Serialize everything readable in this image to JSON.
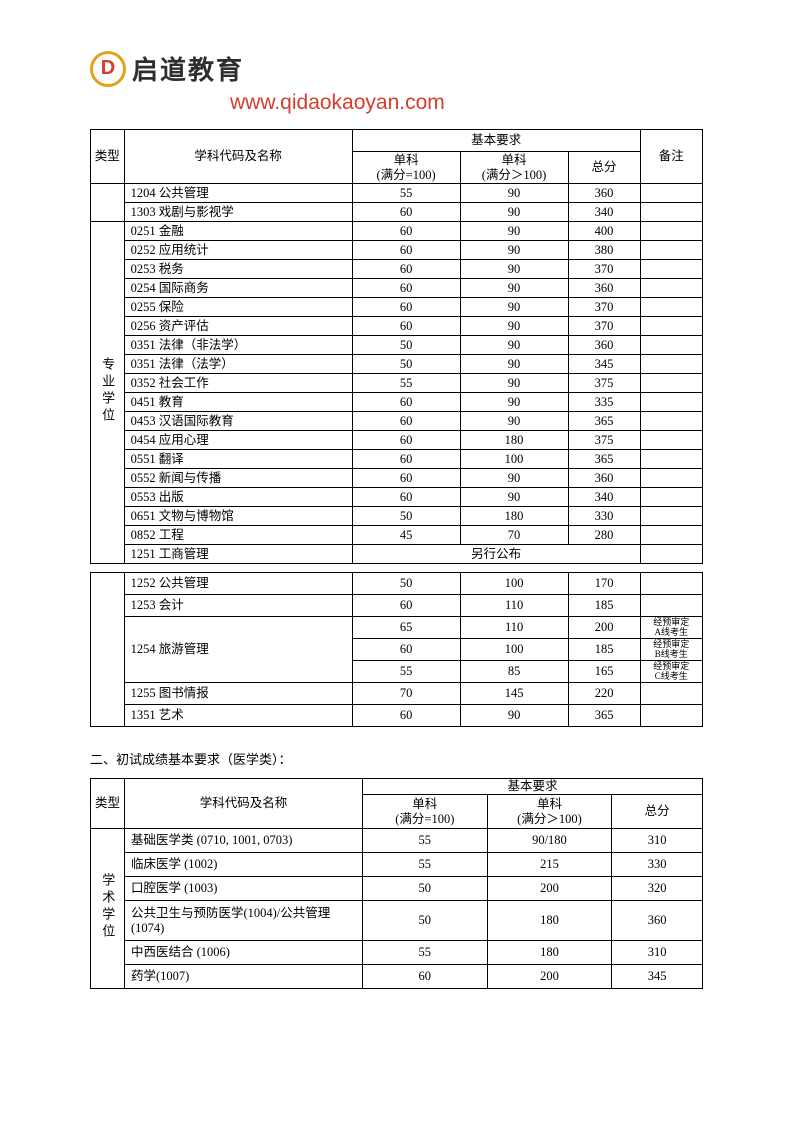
{
  "header": {
    "brand": "启道教育",
    "logo_letter": "D",
    "url": "www.qidaokaoyan.com",
    "brand_color": "#d73c2c",
    "logo_border_color": "#e5a020"
  },
  "table1": {
    "headers": {
      "type": "类型",
      "subject": "学科代码及名称",
      "basic": "基本要求",
      "sub1": "单科\n(满分=100)",
      "sub2": "单科\n(满分＞100)",
      "total": "总分",
      "note": "备注"
    },
    "group_top": {
      "rows": [
        {
          "subject": "1204  公共管理",
          "s1": "55",
          "s2": "90",
          "t": "360",
          "n": ""
        },
        {
          "subject": "1303  戏剧与影视学",
          "s1": "60",
          "s2": "90",
          "t": "340",
          "n": ""
        }
      ]
    },
    "group_pro": {
      "label": "专业学位",
      "rows": [
        {
          "subject": "0251  金融",
          "s1": "60",
          "s2": "90",
          "t": "400",
          "n": ""
        },
        {
          "subject": "0252  应用统计",
          "s1": "60",
          "s2": "90",
          "t": "380",
          "n": ""
        },
        {
          "subject": "0253  税务",
          "s1": "60",
          "s2": "90",
          "t": "370",
          "n": ""
        },
        {
          "subject": "0254  国际商务",
          "s1": "60",
          "s2": "90",
          "t": "360",
          "n": ""
        },
        {
          "subject": "0255  保险",
          "s1": "60",
          "s2": "90",
          "t": "370",
          "n": ""
        },
        {
          "subject": "0256  资产评估",
          "s1": "60",
          "s2": "90",
          "t": "370",
          "n": ""
        },
        {
          "subject": "0351  法律（非法学）",
          "s1": "50",
          "s2": "90",
          "t": "360",
          "n": ""
        },
        {
          "subject": "0351  法律（法学）",
          "s1": "50",
          "s2": "90",
          "t": "345",
          "n": ""
        },
        {
          "subject": "0352  社会工作",
          "s1": "55",
          "s2": "90",
          "t": "375",
          "n": ""
        },
        {
          "subject": "0451  教育",
          "s1": "60",
          "s2": "90",
          "t": "335",
          "n": ""
        },
        {
          "subject": "0453  汉语国际教育",
          "s1": "60",
          "s2": "90",
          "t": "365",
          "n": ""
        },
        {
          "subject": "0454  应用心理",
          "s1": "60",
          "s2": "180",
          "t": "375",
          "n": ""
        },
        {
          "subject": "0551  翻译",
          "s1": "60",
          "s2": "100",
          "t": "365",
          "n": ""
        },
        {
          "subject": "0552  新闻与传播",
          "s1": "60",
          "s2": "90",
          "t": "360",
          "n": ""
        },
        {
          "subject": "0553  出版",
          "s1": "60",
          "s2": "90",
          "t": "340",
          "n": ""
        },
        {
          "subject": "0651  文物与博物馆",
          "s1": "50",
          "s2": "180",
          "t": "330",
          "n": ""
        },
        {
          "subject": "0852  工程",
          "s1": "45",
          "s2": "70",
          "t": "280",
          "n": ""
        }
      ],
      "mba_row": {
        "subject": "1251  工商管理",
        "merged": "另行公布"
      }
    },
    "group_bottom": {
      "rows": [
        {
          "subject": "1252  公共管理",
          "s1": "50",
          "s2": "100",
          "t": "170",
          "n": ""
        },
        {
          "subject": "1253  会计",
          "s1": "60",
          "s2": "110",
          "t": "185",
          "n": ""
        }
      ],
      "tourism": {
        "subject": "1254  旅游管理",
        "lines": [
          {
            "s1": "65",
            "s2": "110",
            "t": "200",
            "n": "经预审定\nA线考生"
          },
          {
            "s1": "60",
            "s2": "100",
            "t": "185",
            "n": "经预审定\nB线考生"
          },
          {
            "s1": "55",
            "s2": "85",
            "t": "165",
            "n": "经预审定\nC线考生"
          }
        ]
      },
      "rows2": [
        {
          "subject": "1255  图书情报",
          "s1": "70",
          "s2": "145",
          "t": "220",
          "n": ""
        },
        {
          "subject": "1351  艺术",
          "s1": "60",
          "s2": "90",
          "t": "365",
          "n": ""
        }
      ]
    }
  },
  "section2_title": "二、初试成绩基本要求（医学类）：",
  "table2": {
    "headers": {
      "type": "类型",
      "subject": "学科代码及名称",
      "basic": "基本要求",
      "sub1": "单科\n(满分=100)",
      "sub2": "单科\n(满分＞100)",
      "total": "总分"
    },
    "group": {
      "label": "学术学位",
      "rows": [
        {
          "subject": "基础医学类 (0710, 1001, 0703)",
          "s1": "55",
          "s2": "90/180",
          "t": "310"
        },
        {
          "subject": "临床医学 (1002)",
          "s1": "55",
          "s2": "215",
          "t": "330"
        },
        {
          "subject": "口腔医学 (1003)",
          "s1": "50",
          "s2": "200",
          "t": "320"
        },
        {
          "subject": "公共卫生与预防医学(1004)/公共管理(1074)",
          "s1": "50",
          "s2": "180",
          "t": "360",
          "tall": true
        },
        {
          "subject": "中西医结合 (1006)",
          "s1": "55",
          "s2": "180",
          "t": "310"
        },
        {
          "subject": "药学(1007)",
          "s1": "60",
          "s2": "200",
          "t": "345"
        }
      ]
    }
  }
}
